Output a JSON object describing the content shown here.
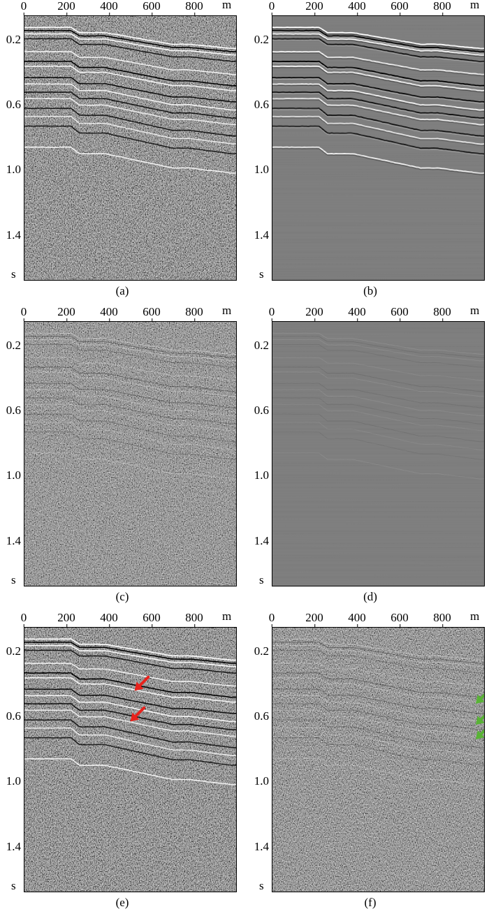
{
  "figure": {
    "panels": [
      {
        "id": "a",
        "caption": "(a)",
        "style": "noisy",
        "arrows": []
      },
      {
        "id": "b",
        "caption": "(b)",
        "style": "clean",
        "arrows": []
      },
      {
        "id": "c",
        "caption": "(c)",
        "style": "residual",
        "arrows": []
      },
      {
        "id": "d",
        "caption": "(d)",
        "style": "smooth",
        "arrows": []
      },
      {
        "id": "e",
        "caption": "(e)",
        "style": "noisy",
        "arrows": [
          {
            "color": "#e8221c",
            "x_m": 520,
            "t_s": 0.44
          },
          {
            "color": "#e8221c",
            "x_m": 500,
            "t_s": 0.63
          }
        ]
      },
      {
        "id": "f",
        "caption": "(f)",
        "style": "residual",
        "arrows": [
          {
            "color": "#59b336",
            "x_m": 960,
            "t_s": 0.52
          },
          {
            "color": "#59b336",
            "x_m": 960,
            "t_s": 0.65
          },
          {
            "color": "#59b336",
            "x_m": 960,
            "t_s": 0.74
          }
        ]
      }
    ]
  },
  "chart_data": {
    "type": "heatmap",
    "description_axes": true,
    "xlim": [
      0,
      1000
    ],
    "ylim": [
      0.05,
      1.68
    ],
    "x_ticks": [
      "0",
      "200",
      "400",
      "600",
      "800"
    ],
    "x_tick_values": [
      0,
      200,
      400,
      600,
      800
    ],
    "x_unit": "m",
    "y_ticks": [
      "0.2",
      "0.6",
      "1.0",
      "1.4"
    ],
    "y_tick_values": [
      0.2,
      0.6,
      1.0,
      1.4
    ],
    "y_unit": "s",
    "reflectors": [
      {
        "t0": 0.12,
        "dt": 0.13,
        "polarity": "white",
        "strength": 1.0
      },
      {
        "t0": 0.14,
        "dt": 0.13,
        "polarity": "black",
        "strength": 1.0
      },
      {
        "t0": 0.16,
        "dt": 0.13,
        "polarity": "white",
        "strength": 0.9
      },
      {
        "t0": 0.19,
        "dt": 0.14,
        "polarity": "black",
        "strength": 0.6
      },
      {
        "t0": 0.27,
        "dt": 0.14,
        "polarity": "white",
        "strength": 0.7
      },
      {
        "t0": 0.33,
        "dt": 0.15,
        "polarity": "black",
        "strength": 1.0
      },
      {
        "t0": 0.36,
        "dt": 0.15,
        "polarity": "white",
        "strength": 0.8
      },
      {
        "t0": 0.43,
        "dt": 0.15,
        "polarity": "black",
        "strength": 0.8
      },
      {
        "t0": 0.47,
        "dt": 0.16,
        "polarity": "white",
        "strength": 0.8
      },
      {
        "t0": 0.52,
        "dt": 0.16,
        "polarity": "black",
        "strength": 0.7
      },
      {
        "t0": 0.56,
        "dt": 0.16,
        "polarity": "white",
        "strength": 0.6
      },
      {
        "t0": 0.62,
        "dt": 0.17,
        "polarity": "black",
        "strength": 0.6
      },
      {
        "t0": 0.67,
        "dt": 0.17,
        "polarity": "white",
        "strength": 0.5
      },
      {
        "t0": 0.73,
        "dt": 0.17,
        "polarity": "black",
        "strength": 0.5
      },
      {
        "t0": 0.86,
        "dt": 0.16,
        "polarity": "white",
        "strength": 0.7
      }
    ]
  }
}
